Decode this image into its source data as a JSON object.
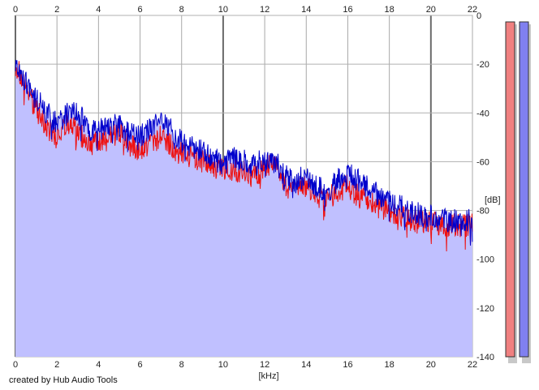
{
  "chart_data": {
    "type": "line",
    "xlabel": "[kHz]",
    "ylabel": "[dB]",
    "xlim": [
      0,
      22
    ],
    "ylim": [
      -140,
      0
    ],
    "x_ticks": [
      0,
      2,
      4,
      6,
      8,
      10,
      12,
      14,
      16,
      18,
      20,
      22
    ],
    "y_ticks": [
      0,
      -20,
      -40,
      -60,
      -80,
      -100,
      -120,
      -140
    ],
    "grid": true,
    "x_values": [
      0,
      0.5,
      1,
      1.5,
      2,
      2.5,
      3,
      3.5,
      4,
      4.5,
      5,
      5.5,
      6,
      6.5,
      7,
      7.5,
      8,
      8.5,
      9,
      9.5,
      10,
      10.5,
      11,
      11.5,
      12,
      12.5,
      13,
      13.5,
      14,
      14.5,
      15,
      15.5,
      16,
      16.5,
      17,
      17.5,
      18,
      18.5,
      19,
      19.5,
      20,
      20.5,
      21,
      21.5,
      22
    ],
    "series": [
      {
        "color": "#ee1111",
        "values": [
          -20,
          -30,
          -38,
          -46,
          -50,
          -44,
          -48,
          -52,
          -53,
          -50,
          -48,
          -53,
          -56,
          -52,
          -50,
          -53,
          -56,
          -58,
          -60,
          -62,
          -64,
          -63,
          -64,
          -66,
          -62,
          -60,
          -70,
          -72,
          -70,
          -74,
          -75,
          -72,
          -70,
          -74,
          -76,
          -78,
          -80,
          -82,
          -84,
          -84,
          -85,
          -86,
          -86,
          -86,
          -86
        ]
      },
      {
        "color": "#0000cc",
        "values": [
          -18,
          -28,
          -34,
          -40,
          -44,
          -40,
          -40,
          -46,
          -48,
          -44,
          -45,
          -48,
          -50,
          -46,
          -44,
          -47,
          -52,
          -54,
          -56,
          -58,
          -62,
          -58,
          -60,
          -62,
          -58,
          -60,
          -66,
          -68,
          -66,
          -70,
          -72,
          -68,
          -64,
          -68,
          -70,
          -74,
          -76,
          -78,
          -80,
          -82,
          -82,
          -84,
          -84,
          -84,
          -84
        ]
      }
    ],
    "fill_color": "#c0c0ff",
    "channel_colors": [
      "#f08080",
      "#8080f0"
    ]
  },
  "footer": {
    "credit": "created by Hub Audio Tools"
  }
}
